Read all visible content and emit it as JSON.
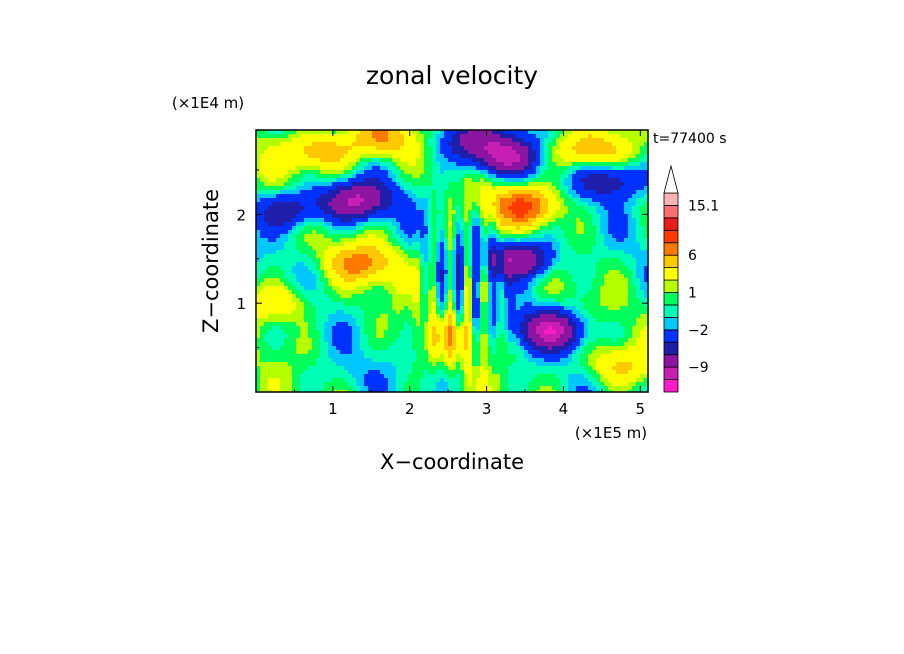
{
  "chart_data": {
    "type": "heatmap",
    "title": "zonal velocity",
    "xlabel": "X−coordinate",
    "ylabel": "Z−coordinate",
    "x_unit": "(×1E5 m)",
    "y_unit": "(×1E4 m)",
    "time_label": "t=77400 s",
    "xlim": [
      0,
      5.1
    ],
    "ylim": [
      0,
      2.95
    ],
    "xticks": [
      "1",
      "2",
      "3",
      "4",
      "5"
    ],
    "yticks": [
      "1",
      "2"
    ],
    "colorbar": {
      "labels": [
        "15.1",
        "6",
        "1",
        "−2",
        "−9"
      ],
      "levels": [
        -14,
        -11,
        -9,
        -6,
        -4,
        -2,
        -1,
        0,
        1,
        2,
        4,
        6,
        8,
        10,
        12,
        15.1
      ],
      "colors": [
        "#ff19c8",
        "#c81eb4",
        "#8c14a0",
        "#1e1eaa",
        "#0032ff",
        "#00c8ff",
        "#00ffb4",
        "#00ff5a",
        "#b4ff00",
        "#ffff00",
        "#ffc800",
        "#ff7800",
        "#ff3c00",
        "#e61e1e",
        "#ff6e6e",
        "#ffb4b4"
      ]
    },
    "features": [
      {
        "x": 0.8,
        "z": 2.7,
        "u": 6
      },
      {
        "x": 1.3,
        "z": 2.15,
        "u": -9
      },
      {
        "x": 0.45,
        "z": 2.05,
        "u": -6
      },
      {
        "x": 1.6,
        "z": 2.85,
        "u": 6
      },
      {
        "x": 3.2,
        "z": 2.65,
        "u": -9
      },
      {
        "x": 2.75,
        "z": 2.85,
        "u": -6
      },
      {
        "x": 4.3,
        "z": 2.7,
        "u": 6
      },
      {
        "x": 3.5,
        "z": 2.1,
        "u": 8
      },
      {
        "x": 3.45,
        "z": 1.5,
        "u": -9
      },
      {
        "x": 4.65,
        "z": 2.4,
        "u": -6
      },
      {
        "x": 1.4,
        "z": 1.45,
        "u": 6
      },
      {
        "x": 3.85,
        "z": 0.7,
        "u": -9
      },
      {
        "x": 0.3,
        "z": 1.0,
        "u": 4
      },
      {
        "x": 2.6,
        "z": 0.6,
        "u": 3
      },
      {
        "x": 1.1,
        "z": 0.15,
        "u": -1
      },
      {
        "x": 4.7,
        "z": 0.3,
        "u": 4
      }
    ]
  }
}
